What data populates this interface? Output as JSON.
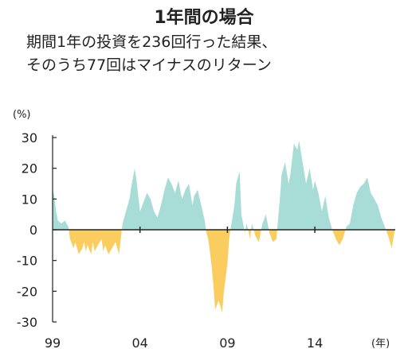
{
  "title": "1年間の場合",
  "subtitle_line1": "期間1年の投資を236回行った結果、",
  "subtitle_line2": "そのうち77回はマイナスのリターン",
  "chart_data": {
    "type": "area",
    "y_unit_label": "(%)",
    "x_unit_label": "(年)",
    "ylim": [
      -30,
      30
    ],
    "y_ticks": [
      30,
      20,
      10,
      0,
      -10,
      -20,
      -30
    ],
    "y_tick_labels": [
      "30",
      "20",
      "10",
      "0",
      "-10",
      "-20",
      "-30"
    ],
    "xlim": [
      1999.0,
      2018.6
    ],
    "x_ticks": [
      1999,
      2004,
      2009,
      2014
    ],
    "x_tick_labels": [
      "99",
      "04",
      "09",
      "14"
    ],
    "positive_color": "#a8dcd6",
    "negative_color": "#fbcd5f",
    "series": [
      {
        "x": [
          1999.0,
          1999.1,
          1999.2,
          1999.3,
          1999.5,
          1999.7,
          1999.9,
          2000.0,
          2000.2,
          2000.3,
          2000.5,
          2000.7,
          2000.8,
          2000.9,
          2001.0,
          2001.2,
          2001.3,
          2001.4,
          2001.6,
          2001.8,
          2001.9,
          2002.0,
          2002.2,
          2002.4,
          2002.6,
          2002.8,
          2003.0,
          2003.2,
          2003.4,
          2003.5,
          2003.7,
          2003.8,
          2004.0,
          2004.2,
          2004.4,
          2004.6,
          2004.8,
          2005.0,
          2005.2,
          2005.4,
          2005.6,
          2005.8,
          2006.0,
          2006.2,
          2006.4,
          2006.6,
          2006.8,
          2007.0,
          2007.1,
          2007.3,
          2007.5,
          2007.7,
          2007.8,
          2007.9,
          2008.0,
          2008.1,
          2008.2,
          2008.3,
          2008.5,
          2008.7,
          2008.8,
          2009.0,
          2009.1,
          2009.2,
          2009.4,
          2009.5,
          2009.7,
          2009.8,
          2010.0,
          2010.1,
          2010.3,
          2010.4,
          2010.6,
          2010.8,
          2011.0,
          2011.2,
          2011.4,
          2011.6,
          2011.8,
          2012.0,
          2012.1,
          2012.3,
          2012.5,
          2012.6,
          2012.8,
          2013.0,
          2013.1,
          2013.3,
          2013.5,
          2013.7,
          2013.9,
          2014.0,
          2014.2,
          2014.4,
          2014.6,
          2014.8,
          2015.0,
          2015.2,
          2015.4,
          2015.6,
          2015.8,
          2016.0,
          2016.2,
          2016.4,
          2016.6,
          2016.8,
          2017.0,
          2017.2,
          2017.4,
          2017.6,
          2017.8,
          2018.0,
          2018.2,
          2018.4,
          2018.6
        ],
        "values": [
          13,
          11,
          6,
          3,
          2,
          3,
          1,
          -3,
          -6,
          -4,
          -8,
          -6,
          -4,
          -7,
          -5,
          -8,
          -4,
          -7,
          -5,
          -3,
          -7,
          -5,
          -8,
          -6,
          -4,
          -8,
          2,
          6,
          10,
          14,
          20,
          16,
          6,
          9,
          12,
          10,
          6,
          4,
          8,
          13,
          17,
          15,
          12,
          16,
          10,
          13,
          15,
          8,
          11,
          13,
          8,
          3,
          -1,
          -3,
          -7,
          -12,
          -18,
          -26,
          -23,
          -27,
          -20,
          -11,
          -3,
          1,
          8,
          15,
          19,
          5,
          -1,
          2,
          -3,
          2,
          -2,
          -4,
          2,
          5,
          -1,
          -4,
          -3,
          10,
          18,
          22,
          15,
          18,
          28,
          26,
          29,
          22,
          15,
          20,
          13,
          16,
          12,
          6,
          11,
          4,
          0,
          -3,
          -5,
          -3,
          1,
          2,
          8,
          12,
          14,
          15,
          17,
          12,
          10,
          8,
          4,
          1,
          -2,
          -6,
          1
        ]
      }
    ]
  }
}
